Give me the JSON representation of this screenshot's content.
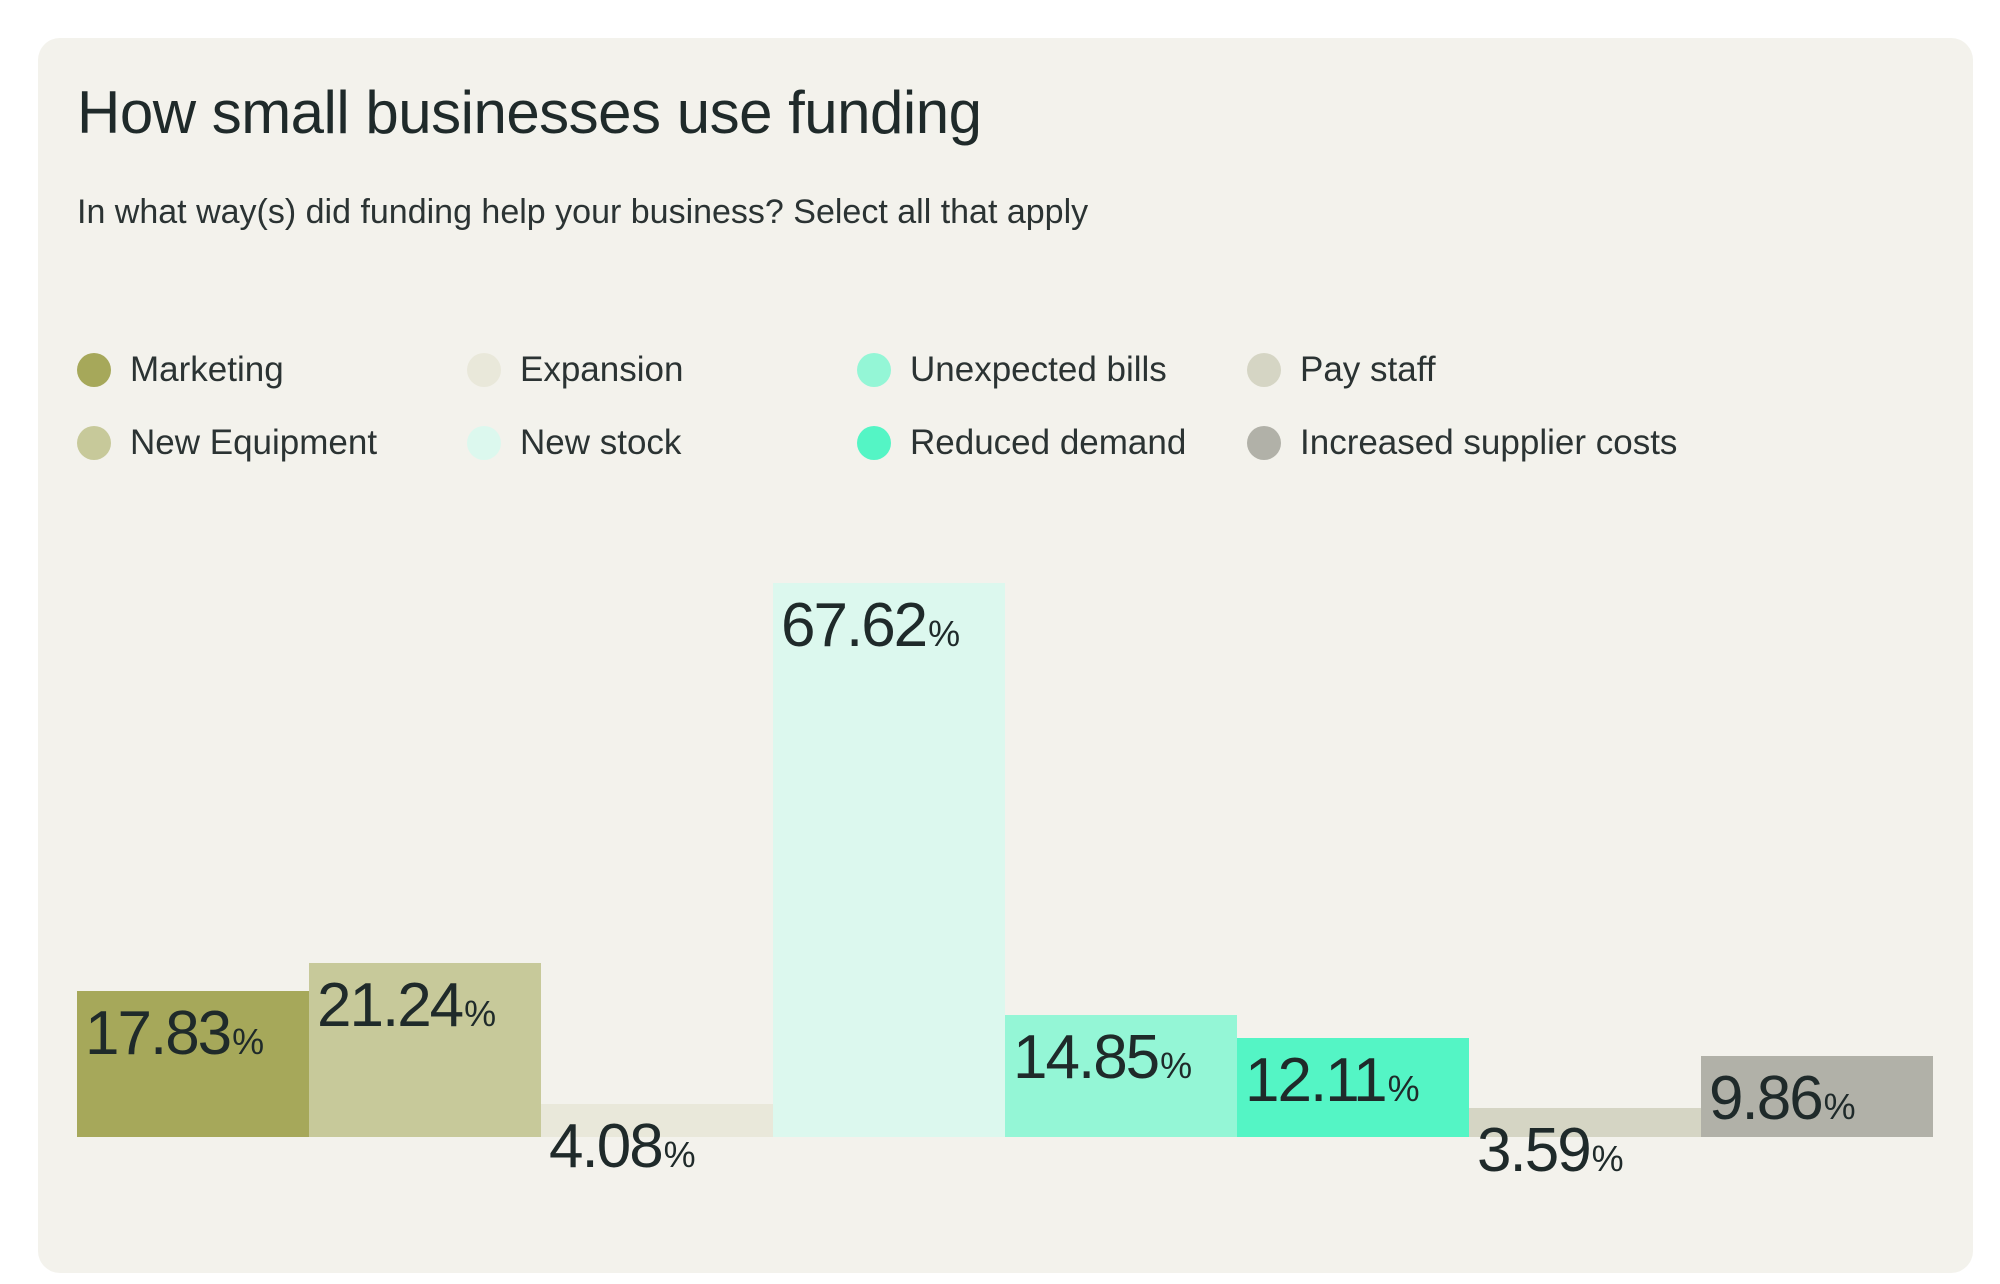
{
  "title": "How small businesses use funding",
  "subtitle": "In what way(s) did funding help your business? Select all that apply",
  "legend": [
    {
      "label": "Marketing",
      "color": "#a6a85a"
    },
    {
      "label": "New Equipment",
      "color": "#c7c99a"
    },
    {
      "label": "Expansion",
      "color": "#e9e8da"
    },
    {
      "label": "New stock",
      "color": "#dcf8ee"
    },
    {
      "label": "Unexpected bills",
      "color": "#94f6d6"
    },
    {
      "label": "Reduced demand",
      "color": "#54f5c5"
    },
    {
      "label": "Pay staff",
      "color": "#d5d5c4"
    },
    {
      "label": "Increased supplier costs",
      "color": "#b1b1a8"
    }
  ],
  "chart_data": {
    "type": "bar",
    "title": "How small businesses use funding",
    "subtitle": "In what way(s) did funding help your business? Select all that apply",
    "categories": [
      "Marketing",
      "New Equipment",
      "Expansion",
      "New stock",
      "Unexpected bills",
      "Reduced demand",
      "Pay staff",
      "Increased supplier costs"
    ],
    "values": [
      17.83,
      21.24,
      4.08,
      67.62,
      14.85,
      12.11,
      3.59,
      9.86
    ],
    "value_labels": [
      "17.83",
      "21.24",
      "4.08",
      "67.62",
      "14.85",
      "12.11",
      "3.59",
      "9.86"
    ],
    "unit": "%",
    "colors": [
      "#a6a85a",
      "#c7c99a",
      "#e9e8da",
      "#dcf8ee",
      "#94f6d6",
      "#54f5c5",
      "#d5d5c4",
      "#b1b1a8"
    ],
    "grid": false,
    "legend_position": "top-left"
  }
}
